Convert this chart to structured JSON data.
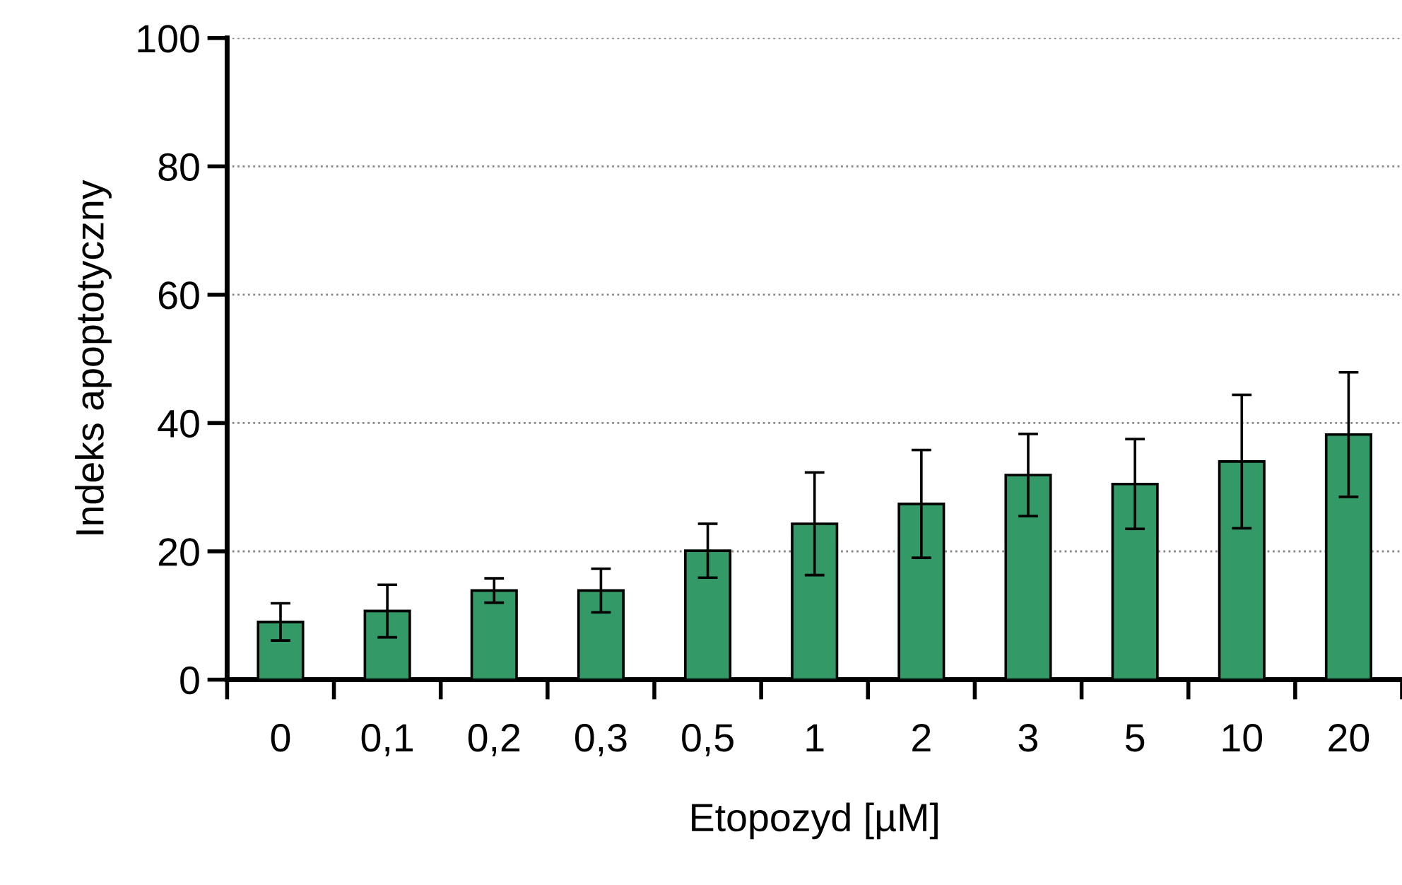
{
  "chart_data": {
    "type": "bar",
    "xlabel": "Etopozyd [µM]",
    "ylabel": "Indeks apoptotyczny",
    "categories": [
      "0",
      "0,1",
      "0,2",
      "0,3",
      "0,5",
      "1",
      "2",
      "3",
      "5",
      "10",
      "20"
    ],
    "values": [
      9.0,
      10.7,
      13.9,
      13.9,
      20.1,
      24.3,
      27.4,
      31.9,
      30.5,
      34.0,
      38.2
    ],
    "errors": [
      2.9,
      4.1,
      1.9,
      3.4,
      4.2,
      8.0,
      8.4,
      6.4,
      7.0,
      10.4,
      9.7
    ],
    "color": "#339966",
    "ylim": [
      0,
      100
    ],
    "yticks": [
      0,
      20,
      40,
      60,
      80,
      100
    ],
    "grid": "y"
  }
}
